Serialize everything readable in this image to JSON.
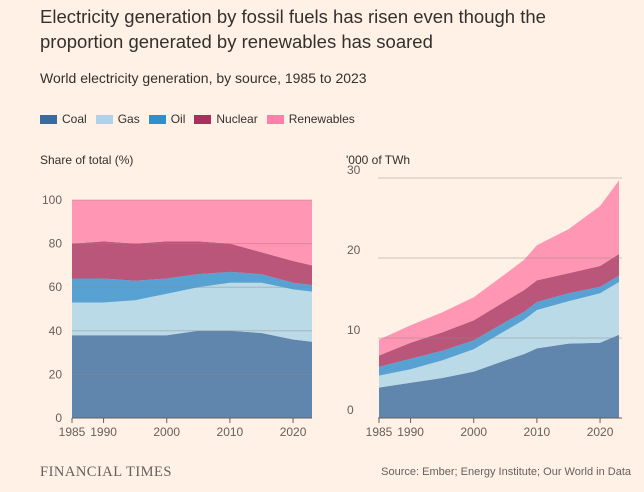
{
  "header": {
    "title": "Electricity generation by fossil fuels has risen even though the proportion generated by renewables has soared",
    "subtitle": "World electricity generation, by source, 1985 to 2023"
  },
  "legend": [
    {
      "name": "Coal",
      "color": "#3a6b9f"
    },
    {
      "name": "Gas",
      "color": "#aad5e8"
    },
    {
      "name": "Oil",
      "color": "#2d8fce"
    },
    {
      "name": "Nuclear",
      "color": "#a8305e"
    },
    {
      "name": "Renewables",
      "color": "#ff7fa8"
    }
  ],
  "footer": {
    "logo": "FINANCIAL TIMES",
    "source": "Source: Ember; Energy Institute; Our World in Data"
  },
  "chart_data": [
    {
      "type": "area",
      "stacked": true,
      "ylabel": "Share of total (%)",
      "ylim": [
        0,
        100
      ],
      "yticks": [
        "0",
        "20",
        "40",
        "60",
        "80",
        "100"
      ],
      "xlim": [
        1985,
        2023
      ],
      "xticks": [
        "1985",
        "1990",
        "2000",
        "2010",
        "2020"
      ],
      "grid": true,
      "x": [
        1985,
        1990,
        1995,
        2000,
        2005,
        2010,
        2015,
        2020,
        2023
      ],
      "series": [
        {
          "name": "Coal",
          "values": [
            38,
            38,
            38,
            38,
            40,
            40,
            39,
            36,
            35
          ]
        },
        {
          "name": "Gas",
          "values": [
            15,
            15,
            16,
            19,
            20,
            22,
            23,
            23,
            23
          ]
        },
        {
          "name": "Oil",
          "values": [
            11,
            11,
            9,
            7,
            6,
            5,
            4,
            3,
            3
          ]
        },
        {
          "name": "Nuclear",
          "values": [
            16,
            17,
            17,
            17,
            15,
            13,
            10,
            10,
            9
          ]
        },
        {
          "name": "Renewables",
          "values": [
            20,
            19,
            20,
            19,
            19,
            20,
            24,
            28,
            30
          ]
        }
      ]
    },
    {
      "type": "area",
      "stacked": true,
      "ylabel": "'000 of TWh",
      "ylim": [
        0,
        30
      ],
      "yticks": [
        "0",
        "10",
        "20",
        "30"
      ],
      "xlim": [
        1985,
        2023
      ],
      "xticks": [
        "1985",
        "1990",
        "2000",
        "2010",
        "2020"
      ],
      "grid": true,
      "x": [
        1985,
        1990,
        1995,
        2000,
        2005,
        2008,
        2010,
        2015,
        2020,
        2023
      ],
      "series": [
        {
          "name": "Coal",
          "values": [
            3.8,
            4.4,
            5.0,
            5.8,
            7.2,
            8.0,
            8.7,
            9.3,
            9.4,
            10.4
          ]
        },
        {
          "name": "Gas",
          "values": [
            1.5,
            1.7,
            2.2,
            2.8,
            3.7,
            4.3,
            4.8,
            5.3,
            6.2,
            6.6
          ]
        },
        {
          "name": "Oil",
          "values": [
            1.1,
            1.3,
            1.2,
            1.1,
            1.1,
            1.0,
            1.0,
            1.0,
            0.8,
            0.8
          ]
        },
        {
          "name": "Nuclear",
          "values": [
            1.4,
            2.0,
            2.3,
            2.5,
            2.6,
            2.7,
            2.7,
            2.5,
            2.6,
            2.7
          ]
        },
        {
          "name": "Renewables",
          "values": [
            2.0,
            2.2,
            2.5,
            2.9,
            3.4,
            3.8,
            4.4,
            5.5,
            7.5,
            9.2
          ]
        }
      ]
    }
  ]
}
